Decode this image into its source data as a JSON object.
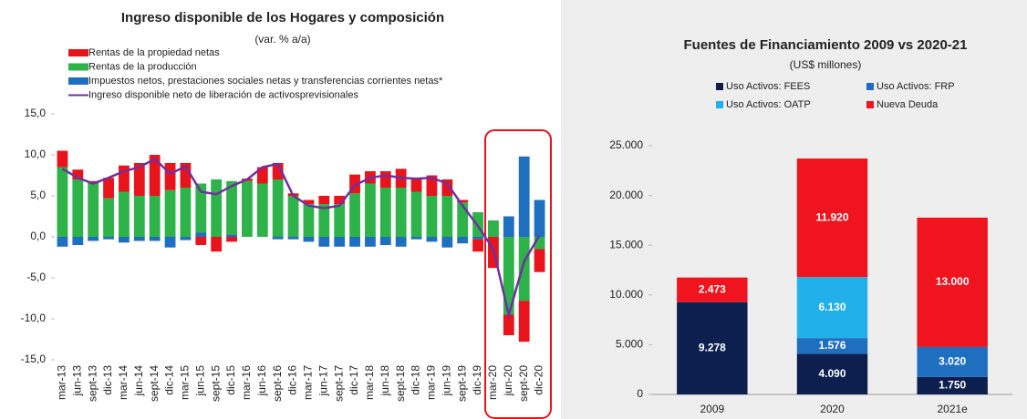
{
  "chart_data": [
    {
      "type": "bar",
      "stacked": true,
      "stack": "reverse",
      "title": "Ingreso disponible de los Hogares y composición",
      "subtitle": "(var. % a/a)",
      "categories": [
        "mar-13",
        "jun-13",
        "sept-13",
        "dic-13",
        "mar-14",
        "jun-14",
        "sept-14",
        "dic-14",
        "mar-15",
        "jun-15",
        "sept-15",
        "dic-15",
        "mar-16",
        "jun-16",
        "sept-16",
        "dic-16",
        "mar-17",
        "jun-17",
        "sept-17",
        "dic-17",
        "mar-18",
        "jun-18",
        "sept-18",
        "dic-18",
        "mar-19",
        "jun-19",
        "sept-19",
        "dic-19",
        "mar-20",
        "jun-20",
        "sept-20",
        "dic-20"
      ],
      "series": [
        {
          "name": "Rentas de la propiedad netas",
          "color": "#e8141c",
          "values": [
            2.0,
            1.2,
            0.3,
            2.5,
            3.2,
            4.0,
            5.0,
            3.3,
            3.0,
            -1.0,
            -1.8,
            -0.6,
            0.3,
            2.0,
            2.0,
            0.3,
            0.5,
            1.0,
            1.0,
            2.3,
            1.5,
            2.0,
            2.3,
            1.5,
            2.5,
            2.0,
            0.3,
            -1.5,
            -3.8,
            -2.5,
            -5.0,
            -2.8
          ]
        },
        {
          "name": "Rentas de la producción",
          "color": "#2db34a",
          "values": [
            8.5,
            7.0,
            6.5,
            4.7,
            5.5,
            5.0,
            5.0,
            5.7,
            6.0,
            6.0,
            7.0,
            6.5,
            6.8,
            6.5,
            7.0,
            5.0,
            4.0,
            4.0,
            4.0,
            5.3,
            6.5,
            6.0,
            6.0,
            5.5,
            5.0,
            5.0,
            4.2,
            3.0,
            2.0,
            -9.5,
            -7.8,
            -1.5
          ]
        },
        {
          "name": "Impuestos netos, prestaciones sociales netas y transferencias corrientes netas*",
          "color": "#1f6fc0",
          "values": [
            -1.2,
            -1.0,
            -0.5,
            -0.3,
            -0.7,
            -0.5,
            -0.5,
            -1.3,
            -0.4,
            0.5,
            0.0,
            0.3,
            0.0,
            0.0,
            -0.3,
            -0.3,
            -0.6,
            -1.2,
            -1.2,
            -1.2,
            -1.2,
            -1.0,
            -1.2,
            -0.3,
            -0.6,
            -1.3,
            -0.8,
            -0.3,
            0.0,
            2.5,
            9.8,
            4.5
          ]
        },
        {
          "name": "Ingreso disponible neto de liberación de activosprevisionales",
          "color": "#7030a0",
          "type": "line",
          "values": [
            8.3,
            7.2,
            6.5,
            7.2,
            8.0,
            8.5,
            9.5,
            7.7,
            8.6,
            5.5,
            5.2,
            6.2,
            7.0,
            8.5,
            8.9,
            5.0,
            3.8,
            3.5,
            3.8,
            6.3,
            7.2,
            7.5,
            7.2,
            7.1,
            7.2,
            6.5,
            3.8,
            1.3,
            -1.5,
            -9.5,
            -3.0,
            0.2
          ]
        }
      ],
      "ylim": [
        -15,
        15
      ],
      "yticks": [
        {
          "value": 15,
          "label": "15,0"
        },
        {
          "value": 10,
          "label": "10,0"
        },
        {
          "value": 5,
          "label": "5,0"
        },
        {
          "value": 0,
          "label": "0,0"
        },
        {
          "value": -5,
          "label": "-5,0"
        },
        {
          "value": -10,
          "label": "-10,0"
        },
        {
          "value": -15,
          "label": "-15,0"
        }
      ],
      "grid": false
    },
    {
      "type": "bar",
      "stacked": true,
      "title": "Fuentes de Financiamiento 2009 vs 2020-21",
      "subtitle": "(US$ millones)",
      "categories": [
        "2009",
        "2020",
        "2021e"
      ],
      "series": [
        {
          "name": "Uso Activos: FEES",
          "color": "#0d1f4f",
          "values": [
            9278,
            4090,
            1750
          ],
          "value_labels": [
            "9.278",
            "4.090",
            "1.750"
          ]
        },
        {
          "name": "Uso Activos: FRP",
          "color": "#1f6fc0",
          "values": [
            null,
            1576,
            3020
          ],
          "value_labels": [
            null,
            "1.576",
            "3.020"
          ]
        },
        {
          "name": "Uso Activos: OATP",
          "color": "#21b0ea",
          "values": [
            null,
            6130,
            null
          ],
          "value_labels": [
            null,
            "6.130",
            null
          ]
        },
        {
          "name": "Nueva Deuda",
          "color": "#f0141e",
          "values": [
            2473,
            11920,
            13000
          ],
          "value_labels": [
            "2.473",
            "11.920",
            "13.000"
          ]
        }
      ],
      "ylim": [
        0,
        25000
      ],
      "yticks": [
        0,
        {
          "value": 5000,
          "label": "5.000"
        },
        {
          "value": 10000,
          "label": "10.000"
        },
        {
          "value": 15000,
          "label": "15.000"
        },
        {
          "value": 20000,
          "label": "20.000"
        },
        {
          "value": 25000,
          "label": "25.000"
        }
      ],
      "grid": false
    }
  ]
}
